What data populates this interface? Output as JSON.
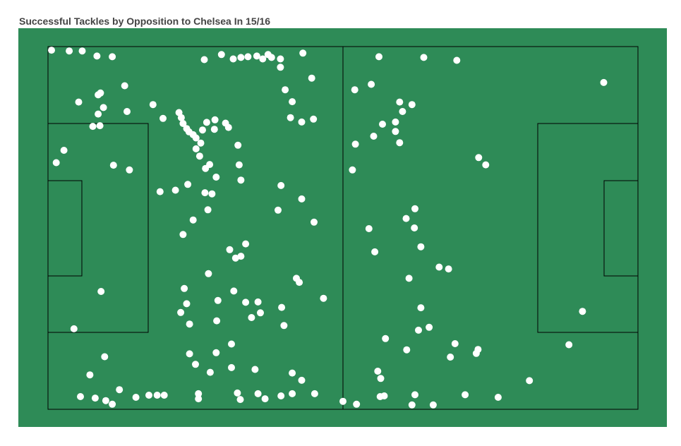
{
  "chart_data": {
    "type": "scatter",
    "title": "Successful Tackles by Opposition to Chelsea In 15/16",
    "xlabel": "",
    "ylabel": "",
    "xlim": [
      0,
      100
    ],
    "ylim": [
      0,
      100
    ],
    "grid": false,
    "colors": {
      "pitch": "#2e8b57",
      "lines": "#000000",
      "points": "#ffffff"
    },
    "points": [
      [
        0.6,
        1.0
      ],
      [
        3.6,
        1.2
      ],
      [
        5.8,
        1.2
      ],
      [
        8.3,
        2.6
      ],
      [
        10.9,
        2.8
      ],
      [
        26.5,
        3.6
      ],
      [
        29.4,
        2.2
      ],
      [
        31.4,
        3.4
      ],
      [
        32.7,
        3.0
      ],
      [
        33.9,
        2.8
      ],
      [
        35.4,
        2.6
      ],
      [
        36.4,
        3.4
      ],
      [
        37.3,
        2.2
      ],
      [
        37.9,
        3.0
      ],
      [
        39.4,
        5.7
      ],
      [
        43.2,
        1.8
      ],
      [
        44.7,
        8.7
      ],
      [
        5.2,
        15.3
      ],
      [
        8.5,
        18.6
      ],
      [
        8.5,
        13.3
      ],
      [
        8.9,
        12.8
      ],
      [
        9.4,
        16.8
      ],
      [
        13.0,
        10.8
      ],
      [
        13.4,
        17.9
      ],
      [
        17.8,
        16.0
      ],
      [
        19.5,
        19.8
      ],
      [
        22.2,
        18.2
      ],
      [
        22.6,
        19.6
      ],
      [
        22.9,
        21.2
      ],
      [
        26.9,
        20.9
      ],
      [
        28.2,
        22.8
      ],
      [
        28.3,
        20.2
      ],
      [
        30.6,
        22.3
      ],
      [
        30.1,
        21.1
      ],
      [
        40.2,
        11.9
      ],
      [
        41.1,
        19.6
      ],
      [
        41.4,
        15.2
      ],
      [
        43.0,
        20.8
      ],
      [
        45.0,
        20.0
      ],
      [
        7.6,
        22.0
      ],
      [
        8.8,
        21.8
      ],
      [
        1.4,
        32.0
      ],
      [
        11.1,
        32.7
      ],
      [
        13.8,
        34.0
      ],
      [
        23.5,
        22.6
      ],
      [
        23.9,
        23.5
      ],
      [
        24.6,
        24.3
      ],
      [
        25.1,
        25.2
      ],
      [
        26.2,
        23.0
      ],
      [
        25.9,
        26.6
      ],
      [
        25.1,
        28.2
      ],
      [
        25.7,
        30.2
      ],
      [
        26.7,
        33.6
      ],
      [
        27.4,
        32.5
      ],
      [
        28.5,
        36.0
      ],
      [
        26.6,
        40.3
      ],
      [
        27.8,
        40.6
      ],
      [
        23.7,
        38.0
      ],
      [
        21.6,
        39.6
      ],
      [
        19.0,
        40.0
      ],
      [
        27.1,
        45.0
      ],
      [
        24.6,
        47.8
      ],
      [
        22.9,
        51.8
      ],
      [
        30.8,
        56.0
      ],
      [
        32.7,
        57.8
      ],
      [
        33.5,
        54.4
      ],
      [
        31.8,
        58.3
      ],
      [
        27.2,
        62.6
      ],
      [
        28.8,
        70.0
      ],
      [
        23.5,
        70.9
      ],
      [
        22.5,
        73.3
      ],
      [
        24.0,
        76.5
      ],
      [
        32.7,
        36.8
      ],
      [
        32.4,
        32.6
      ],
      [
        32.2,
        27.2
      ],
      [
        31.5,
        67.4
      ],
      [
        33.5,
        70.5
      ],
      [
        34.5,
        74.7
      ],
      [
        35.6,
        70.4
      ],
      [
        36.0,
        73.4
      ],
      [
        40.0,
        76.9
      ],
      [
        39.0,
        45.1
      ],
      [
        24.0,
        84.7
      ],
      [
        28.5,
        84.4
      ],
      [
        25.0,
        87.6
      ],
      [
        35.1,
        89.0
      ],
      [
        31.1,
        88.5
      ],
      [
        27.5,
        89.8
      ],
      [
        31.1,
        82.0
      ],
      [
        4.4,
        77.8
      ],
      [
        7.1,
        90.5
      ],
      [
        9.6,
        85.5
      ],
      [
        12.1,
        94.6
      ],
      [
        18.5,
        96.1
      ],
      [
        19.7,
        96.1
      ],
      [
        5.5,
        96.5
      ],
      [
        8.0,
        96.9
      ],
      [
        9.8,
        97.6
      ],
      [
        10.9,
        98.6
      ],
      [
        14.9,
        96.7
      ],
      [
        17.1,
        96.1
      ],
      [
        25.5,
        97.1
      ],
      [
        25.5,
        95.7
      ],
      [
        32.1,
        95.5
      ],
      [
        32.6,
        97.3
      ],
      [
        35.6,
        95.7
      ],
      [
        36.8,
        97.1
      ],
      [
        39.5,
        96.3
      ],
      [
        41.4,
        95.7
      ],
      [
        41.4,
        90.0
      ],
      [
        43.0,
        92.0
      ],
      [
        45.2,
        95.7
      ],
      [
        46.7,
        69.4
      ],
      [
        28.6,
        75.6
      ],
      [
        23.1,
        66.7
      ],
      [
        39.6,
        71.9
      ],
      [
        42.6,
        65.0
      ],
      [
        42.1,
        63.9
      ],
      [
        45.1,
        48.4
      ],
      [
        43.0,
        42.0
      ],
      [
        39.5,
        38.3
      ],
      [
        52.0,
        11.9
      ],
      [
        54.8,
        10.4
      ],
      [
        56.1,
        2.8
      ],
      [
        63.7,
        3.0
      ],
      [
        69.3,
        3.8
      ],
      [
        61.7,
        16.0
      ],
      [
        59.6,
        15.3
      ],
      [
        60.1,
        17.9
      ],
      [
        58.9,
        20.8
      ],
      [
        56.7,
        21.4
      ],
      [
        58.9,
        23.4
      ],
      [
        55.2,
        24.7
      ],
      [
        52.1,
        26.9
      ],
      [
        59.6,
        26.5
      ],
      [
        51.6,
        34.0
      ],
      [
        62.2,
        44.7
      ],
      [
        73.0,
        30.6
      ],
      [
        74.2,
        32.6
      ],
      [
        54.4,
        50.2
      ],
      [
        55.4,
        56.6
      ],
      [
        60.7,
        47.4
      ],
      [
        62.1,
        50.0
      ],
      [
        63.2,
        55.2
      ],
      [
        66.3,
        60.8
      ],
      [
        67.9,
        61.3
      ],
      [
        61.2,
        63.9
      ],
      [
        63.2,
        72.0
      ],
      [
        62.8,
        78.2
      ],
      [
        60.8,
        83.6
      ],
      [
        64.6,
        77.4
      ],
      [
        68.2,
        85.6
      ],
      [
        72.9,
        83.5
      ],
      [
        72.6,
        84.6
      ],
      [
        69.0,
        81.9
      ],
      [
        57.2,
        80.5
      ],
      [
        55.9,
        89.5
      ],
      [
        56.4,
        91.5
      ],
      [
        50.0,
        97.8
      ],
      [
        52.3,
        98.6
      ],
      [
        56.3,
        96.5
      ],
      [
        61.7,
        98.8
      ],
      [
        62.2,
        96.0
      ],
      [
        65.3,
        98.8
      ],
      [
        70.7,
        96.0
      ],
      [
        76.3,
        96.7
      ],
      [
        81.6,
        92.1
      ],
      [
        57.0,
        96.3
      ],
      [
        94.2,
        9.9
      ],
      [
        88.3,
        82.2
      ],
      [
        90.6,
        73.0
      ],
      [
        39.4,
        3.4
      ],
      [
        2.7,
        28.6
      ],
      [
        9.0,
        67.5
      ]
    ]
  }
}
